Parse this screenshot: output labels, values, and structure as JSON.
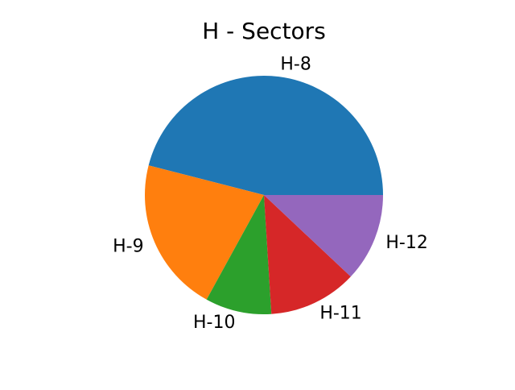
{
  "chart_data": {
    "type": "pie",
    "title": "H - Sectors",
    "start_angle_deg": 0,
    "direction": "counterclockwise",
    "slices": [
      {
        "label": "H-8",
        "value": 46,
        "color": "#1f77b4"
      },
      {
        "label": "H-9",
        "value": 21,
        "color": "#ff7f0e"
      },
      {
        "label": "H-10",
        "value": 9,
        "color": "#2ca02c"
      },
      {
        "label": "H-11",
        "value": 12,
        "color": "#d62728"
      },
      {
        "label": "H-12",
        "value": 12,
        "color": "#9467bd"
      }
    ]
  }
}
